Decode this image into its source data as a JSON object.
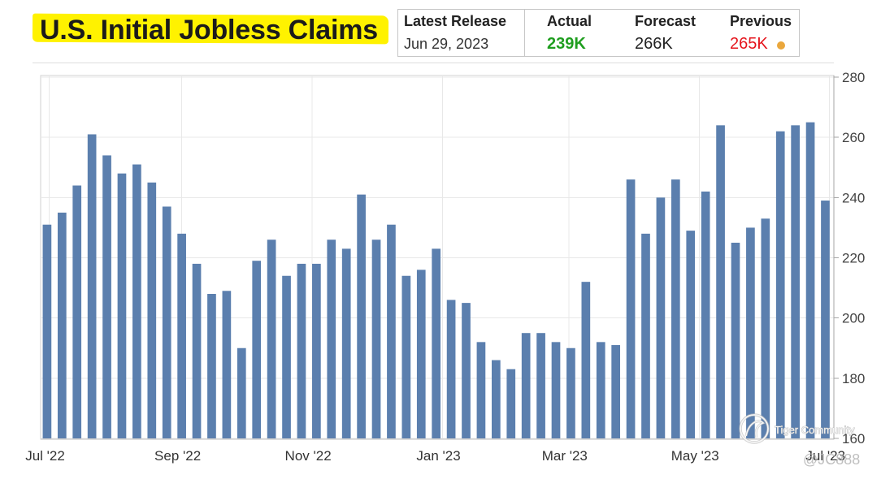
{
  "chart_data": {
    "type": "bar",
    "title": "U.S. Initial Jobless Claims",
    "x": [
      "2022-06-30",
      "2022-07-07",
      "2022-07-14",
      "2022-07-21",
      "2022-07-28",
      "2022-08-04",
      "2022-08-11",
      "2022-08-18",
      "2022-08-25",
      "2022-09-01",
      "2022-09-08",
      "2022-09-15",
      "2022-09-22",
      "2022-09-29",
      "2022-10-06",
      "2022-10-13",
      "2022-10-20",
      "2022-10-27",
      "2022-11-03",
      "2022-11-10",
      "2022-11-17",
      "2022-11-24",
      "2022-12-01",
      "2022-12-08",
      "2022-12-15",
      "2022-12-22",
      "2022-12-29",
      "2023-01-05",
      "2023-01-12",
      "2023-01-19",
      "2023-01-26",
      "2023-02-02",
      "2023-02-09",
      "2023-02-16",
      "2023-02-23",
      "2023-03-02",
      "2023-03-09",
      "2023-03-16",
      "2023-03-23",
      "2023-03-30",
      "2023-04-06",
      "2023-04-13",
      "2023-04-20",
      "2023-04-27",
      "2023-05-04",
      "2023-05-11",
      "2023-05-18",
      "2023-05-25",
      "2023-06-01",
      "2023-06-08",
      "2023-06-15",
      "2023-06-22",
      "2023-06-29"
    ],
    "values": [
      231,
      235,
      244,
      261,
      254,
      248,
      251,
      245,
      237,
      228,
      218,
      208,
      209,
      190,
      219,
      226,
      214,
      218,
      218,
      226,
      223,
      241,
      226,
      231,
      214,
      216,
      223,
      206,
      205,
      192,
      186,
      183,
      195,
      195,
      192,
      190,
      212,
      192,
      191,
      246,
      228,
      240,
      246,
      229,
      242,
      264,
      225,
      230,
      233,
      262,
      264,
      265,
      239
    ],
    "xlim": [
      "2022-06-27",
      "2023-07-03"
    ],
    "ylim": [
      160,
      280
    ],
    "y_ticks": [
      160,
      180,
      200,
      220,
      240,
      260,
      280
    ],
    "x_ticks": [
      {
        "label": "Jul '22",
        "date": "2022-07-01"
      },
      {
        "label": "Sep '22",
        "date": "2022-09-01"
      },
      {
        "label": "Nov '22",
        "date": "2022-11-01"
      },
      {
        "label": "Jan '23",
        "date": "2023-01-01"
      },
      {
        "label": "Mar '23",
        "date": "2023-03-01"
      },
      {
        "label": "May '23",
        "date": "2023-05-01"
      },
      {
        "label": "Jul '23",
        "date": "2023-07-01"
      }
    ],
    "y_axis_side": "right",
    "grid": true
  },
  "release": {
    "latest_release": {
      "label": "Latest Release",
      "value": "Jun 29, 2023"
    },
    "actual": {
      "label": "Actual",
      "value": "239K"
    },
    "forecast": {
      "label": "Forecast",
      "value": "266K"
    },
    "previous": {
      "label": "Previous",
      "value": "265K"
    }
  },
  "colors": {
    "highlight": "#fff200",
    "bar": "#5b7fae",
    "actual": "#1f9e1f",
    "previous": "#e5141c",
    "previous_dot": "#eaa73c"
  },
  "watermark": {
    "brand": "Tiger Community",
    "handle": "@JC888"
  }
}
